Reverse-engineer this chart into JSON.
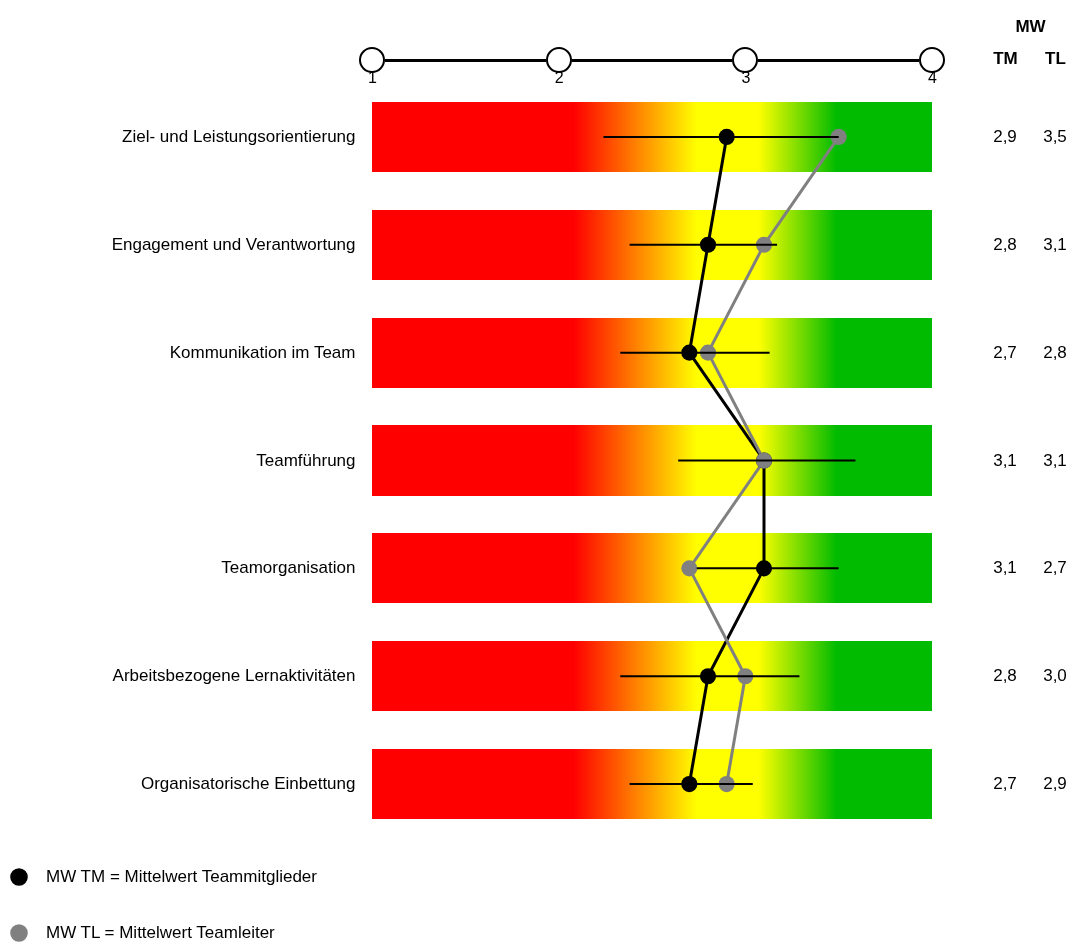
{
  "chart_data": {
    "type": "line",
    "orientation": "horizontal",
    "categories": [
      "Ziel- und Leistungsorientierung",
      "Engagement und Verantwortung",
      "Kommunikation im Team",
      "Teamführung",
      "Teamorganisation",
      "Arbeitsbezogene Lernaktivitäten",
      "Organisatorische Einbettung"
    ],
    "series": [
      {
        "name": "MW TM = Mittelwert Teammitglieder",
        "color": "#000000",
        "values": [
          2.9,
          2.8,
          2.7,
          3.1,
          3.1,
          2.8,
          2.7
        ],
        "value_labels": [
          "2,9",
          "2,8",
          "2,7",
          "3,1",
          "3,1",
          "2,8",
          "2,7"
        ],
        "errors": [
          [
            2.24,
            3.5
          ],
          [
            2.38,
            3.17
          ],
          [
            2.33,
            3.13
          ],
          [
            2.64,
            3.59
          ],
          [
            2.74,
            3.5
          ],
          [
            2.33,
            3.29
          ],
          [
            2.38,
            3.04
          ]
        ]
      },
      {
        "name": "MW TL = Mittelwert Teamleiter",
        "color": "#808080",
        "values": [
          3.5,
          3.1,
          2.8,
          3.1,
          2.7,
          3.0,
          2.9
        ],
        "value_labels": [
          "3,5",
          "3,1",
          "2,8",
          "3,1",
          "2,7",
          "3,0",
          "2,9"
        ]
      }
    ],
    "xlim": [
      1,
      4
    ],
    "xticks": [
      1,
      2,
      3,
      4
    ],
    "annotations": [
      "MW",
      "TM",
      "TL"
    ],
    "legend": "bottom",
    "marker": "circle",
    "line_style": "solid"
  }
}
